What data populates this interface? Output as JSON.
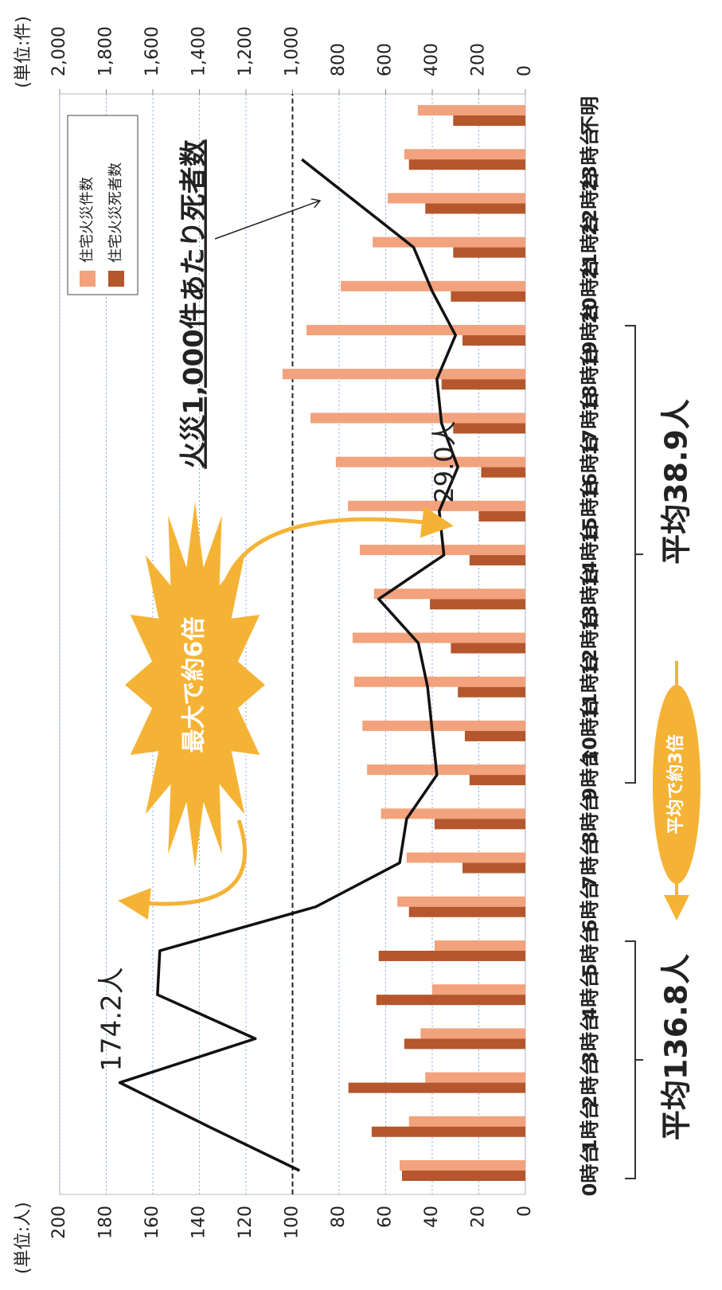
{
  "chart_data": {
    "type": "bar",
    "y_unit": "(単位:人)",
    "y2_unit": "(単位:件)",
    "categories": [
      "0時台",
      "1時台",
      "2時台",
      "3時台",
      "4時台",
      "5時台",
      "6時台",
      "7時台",
      "8時台",
      "9時台",
      "10時台",
      "11時台",
      "12時台",
      "13時台",
      "14時台",
      "15時台",
      "16時台",
      "17時台",
      "18時台",
      "19時台",
      "20時台",
      "21時台",
      "22時台",
      "23時台",
      "不明"
    ],
    "series": [
      {
        "name": "住宅火災件数",
        "type": "bar",
        "axis": "y2",
        "color": "#f2a27c",
        "values": [
          540,
          500,
          430,
          450,
          400,
          390,
          550,
          510,
          620,
          680,
          700,
          735,
          742,
          650,
          711,
          762,
          814,
          923,
          1043,
          940,
          793,
          656,
          591,
          520,
          462
        ]
      },
      {
        "name": "住宅火災死者数",
        "type": "bar",
        "axis": "y",
        "color": "#b5562c",
        "values": [
          53,
          66,
          76,
          52,
          64,
          63,
          50,
          27,
          39,
          24,
          26,
          29,
          32,
          41,
          24,
          20,
          19,
          31,
          36,
          27,
          32,
          31,
          43,
          50,
          31
        ]
      },
      {
        "name": "火災1,000件あたり死者数",
        "type": "line",
        "axis": "y",
        "color": "#111111",
        "values": [
          97,
          136,
          174.2,
          116,
          158,
          157,
          90,
          54,
          51,
          38,
          40,
          42,
          46,
          63,
          35,
          37,
          29.0,
          36,
          38,
          30,
          40,
          48,
          72,
          96,
          null
        ]
      }
    ],
    "ylim": [
      0,
      200
    ],
    "yticks": [
      0,
      20,
      40,
      60,
      80,
      100,
      120,
      140,
      160,
      180,
      200
    ],
    "y2lim": [
      0,
      2000
    ],
    "y2ticks": [
      0,
      200,
      400,
      600,
      800,
      {
        "value": 1000,
        "label": "1,000"
      },
      {
        "value": 1200,
        "label": "1,200"
      },
      {
        "value": 1400,
        "label": "1,400"
      },
      {
        "value": 1600,
        "label": "1,600"
      },
      {
        "value": 1800,
        "label": "1,800"
      },
      {
        "value": 2000,
        "label": "2,000"
      }
    ],
    "grid": true,
    "reference_line": 100,
    "legend": "top-left",
    "annotations": {
      "peak": "174.2人",
      "minimum": "29.0人",
      "max_ratio": "最大で約6倍",
      "avg_ratio": "平均で約3倍",
      "avg_night": "平均136.8人",
      "avg_day": "平均38.9人"
    }
  }
}
